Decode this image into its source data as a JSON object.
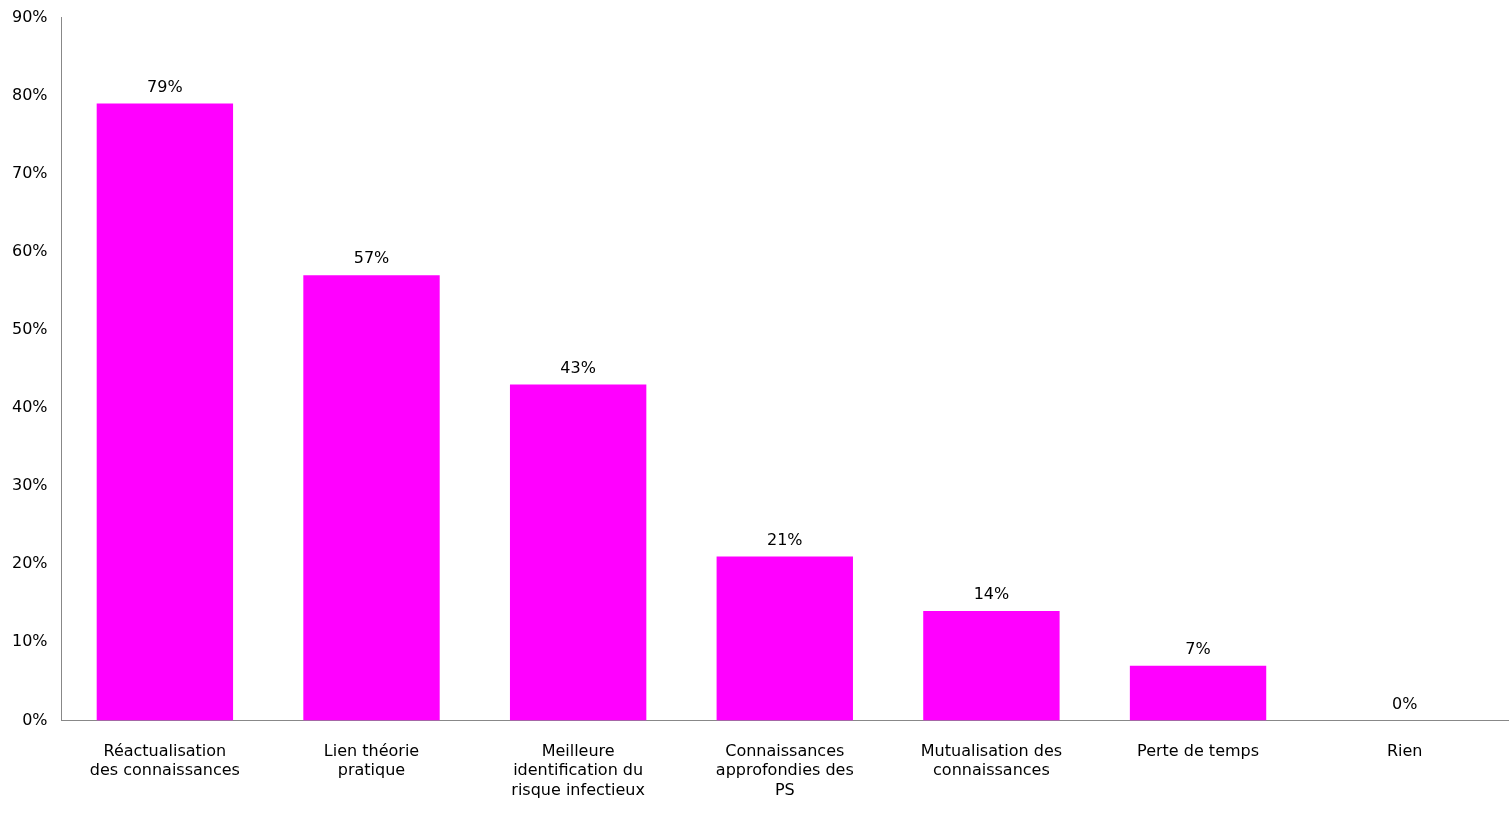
{
  "chart_data": {
    "type": "bar",
    "categories": [
      "Réactualisation des connaissances",
      "Lien théorie pratique",
      "Meilleure identification du risque infectieux",
      "Connaissances approfondies des PS",
      "Mutualisation des connaissances",
      "Perte de temps",
      "Rien"
    ],
    "values": [
      79,
      57,
      43,
      21,
      14,
      7,
      0
    ],
    "value_labels": [
      "79%",
      "57%",
      "43%",
      "21%",
      "14%",
      "7%",
      "0%"
    ],
    "color": "#ff00ff",
    "ylim": [
      0,
      90
    ],
    "yticks": [
      {
        "value": 0,
        "label": "0%"
      },
      {
        "value": 10,
        "label": "10%"
      },
      {
        "value": 20,
        "label": "20%"
      },
      {
        "value": 30,
        "label": "30%"
      },
      {
        "value": 40,
        "label": "40%"
      },
      {
        "value": 50,
        "label": "50%"
      },
      {
        "value": 60,
        "label": "60%"
      },
      {
        "value": 70,
        "label": "70%"
      },
      {
        "value": 80,
        "label": "80%"
      },
      {
        "value": 90,
        "label": "90%"
      }
    ],
    "grid": false,
    "legend": false
  }
}
